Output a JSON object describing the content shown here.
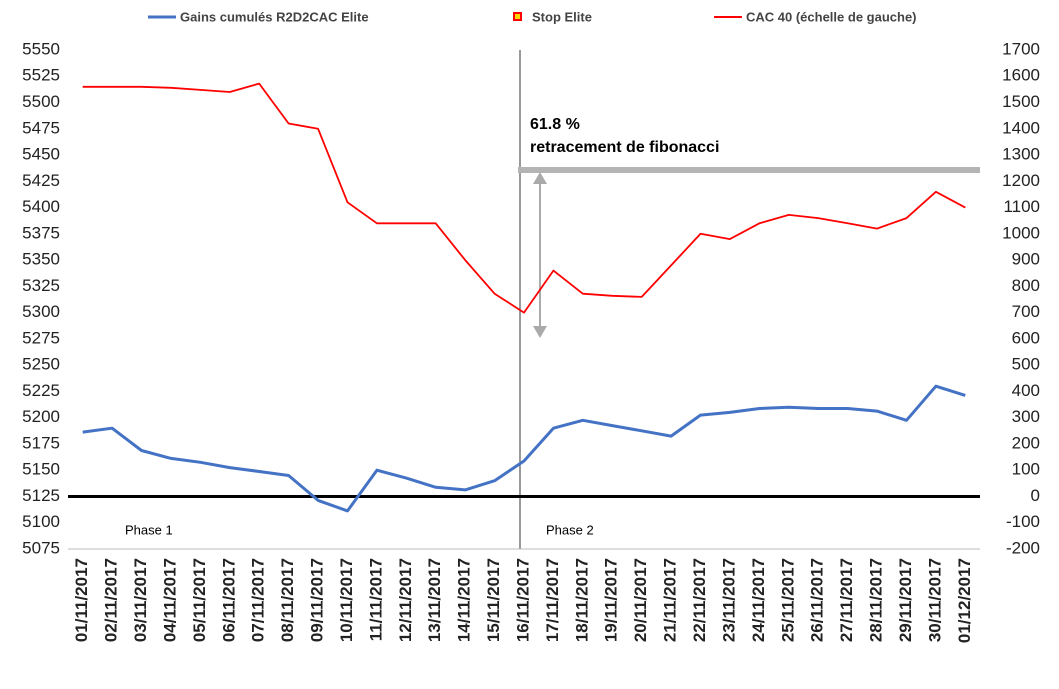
{
  "chart_data": {
    "type": "line",
    "categories": [
      "01/11/2017",
      "02/11/2017",
      "03/11/2017",
      "04/11/2017",
      "05/11/2017",
      "06/11/2017",
      "07/11/2017",
      "08/11/2017",
      "09/11/2017",
      "10/11/2017",
      "11/11/2017",
      "12/11/2017",
      "13/11/2017",
      "14/11/2017",
      "15/11/2017",
      "16/11/2017",
      "17/11/2017",
      "18/11/2017",
      "19/11/2017",
      "20/11/2017",
      "21/11/2017",
      "22/11/2017",
      "23/11/2017",
      "24/11/2017",
      "25/11/2017",
      "26/11/2017",
      "27/11/2017",
      "28/11/2017",
      "29/11/2017",
      "30/11/2017",
      "01/12/2017"
    ],
    "series": [
      {
        "name": "Gains cumulés R2D2CAC Elite",
        "color": "#4472c4",
        "axis": "y2",
        "values": [
          245,
          260,
          175,
          145,
          130,
          110,
          95,
          80,
          -15,
          -55,
          100,
          70,
          35,
          25,
          60,
          135,
          260,
          290,
          270,
          250,
          230,
          310,
          320,
          335,
          340,
          335,
          335,
          325,
          290,
          420,
          385
        ]
      },
      {
        "name": "Stop Elite",
        "color": "#ff0000",
        "values": [
          null,
          null,
          null,
          null,
          null,
          null,
          null,
          null,
          null,
          null,
          null,
          null,
          null,
          null,
          null,
          null,
          null,
          null,
          null,
          null,
          null,
          null,
          null,
          null,
          null,
          null,
          null,
          null,
          null,
          null,
          null
        ]
      },
      {
        "name": "CAC 40 (échelle de gauche)",
        "color": "#ff0000",
        "values": [
          5515,
          5515,
          5515,
          5514,
          5512,
          5510,
          5518,
          5480,
          5475,
          5405,
          5385,
          5385,
          5385,
          5350,
          5318,
          5300,
          5340,
          5318,
          5316,
          5315,
          5345,
          5375,
          5370,
          5385,
          5393,
          5390,
          5385,
          5380,
          5390,
          5415,
          5400
        ]
      }
    ],
    "ylim": [
      5075,
      5550
    ],
    "yticks": [
      5075,
      5100,
      5125,
      5150,
      5175,
      5200,
      5225,
      5250,
      5275,
      5300,
      5325,
      5350,
      5375,
      5400,
      5425,
      5450,
      5475,
      5500,
      5525,
      5550
    ],
    "y2lim": [
      -200,
      1700
    ],
    "y2ticks": [
      -200,
      -100,
      0,
      100,
      200,
      300,
      400,
      500,
      600,
      700,
      800,
      900,
      1000,
      1100,
      1200,
      1300,
      1400,
      1500,
      1600,
      1700
    ],
    "annotations": [
      "61.8 %",
      "retracement de fibonacci",
      "Phase 1",
      "Phase 2"
    ]
  }
}
